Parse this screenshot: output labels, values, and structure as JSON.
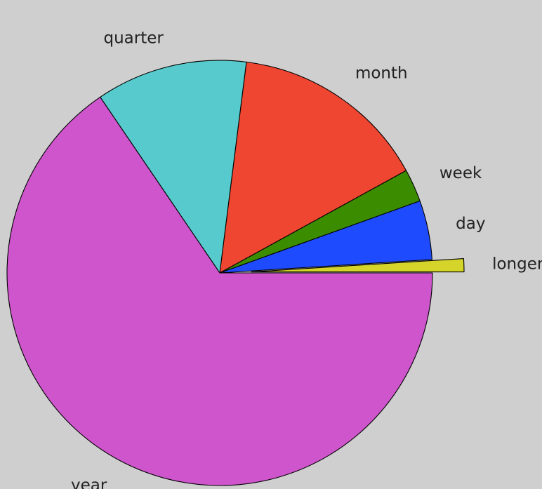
{
  "chart_data": {
    "type": "pie",
    "title": "",
    "labels": [
      "longer",
      "day",
      "week",
      "month",
      "quarter",
      "year"
    ],
    "values": [
      1.0,
      4.5,
      2.5,
      15.0,
      11.5,
      65.5
    ],
    "colors": [
      "#d4d42a",
      "#1f4bff",
      "#3c8c00",
      "#ee4631",
      "#56cacc",
      "#cf55cc"
    ],
    "exploded": [
      "longer"
    ],
    "start_angle_degrees": 0,
    "direction": "counterclockwise",
    "legend": "none"
  }
}
